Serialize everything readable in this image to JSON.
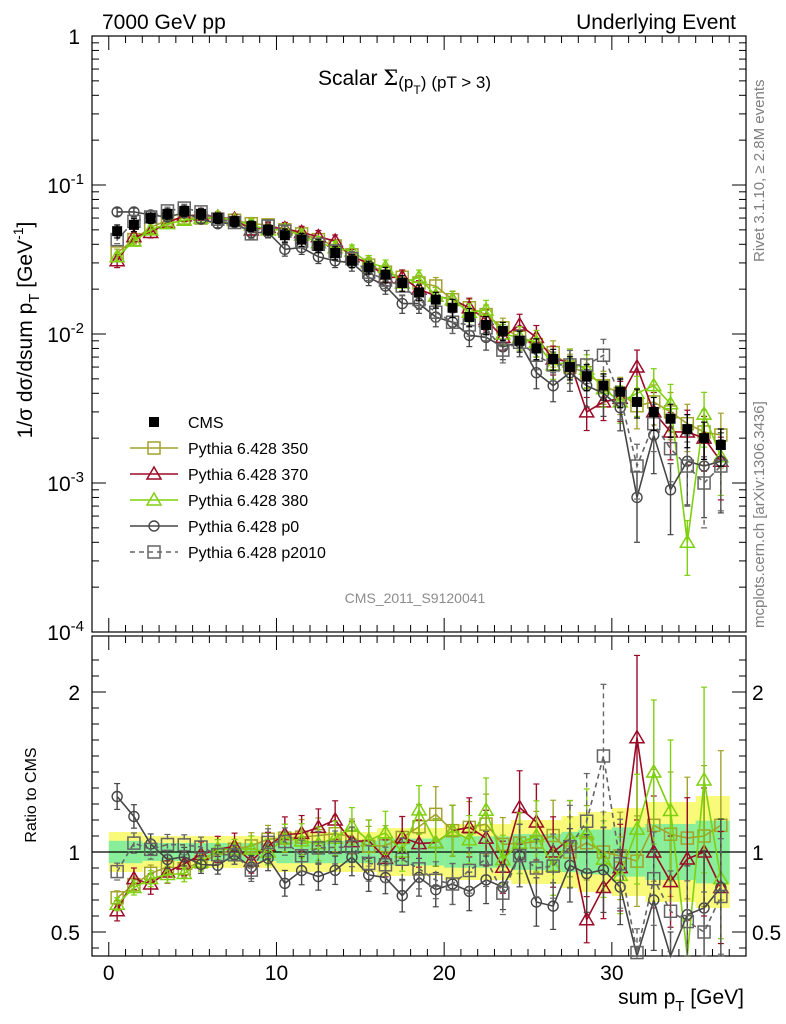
{
  "header": {
    "left": "7000 GeV pp",
    "right": "Underlying Event"
  },
  "side_labels": {
    "rivet": "Rivet 3.1.10, ≥ 2.8M events",
    "mcplots": "mcplots.cern.ch [arXiv:1306.3436]"
  },
  "analysis_id": "CMS_2011_S9120041",
  "chart_data": [
    {
      "type": "line",
      "title": "Scalar Σ(p_T) (pT > 3)",
      "title_parts": {
        "main": "Scalar ",
        "sigma": "Σ",
        "p": "(p",
        "T": "T",
        "close": ")",
        "cut": "(pT >  3)"
      },
      "ylabel": "1/σ dσ/dsum p_T [GeV⁻¹]",
      "ylabel_parts": {
        "main": "1/σ dσ/dsum p",
        "sub": "T",
        "unit": " [GeV",
        "exp": "-1",
        "close": "]"
      },
      "xlabel": "sum p_T [GeV]",
      "yscale": "log",
      "ylim": [
        0.0001,
        1
      ],
      "xlim": [
        -1,
        38
      ],
      "yticks": [
        {
          "v": 1,
          "label": "1"
        },
        {
          "v": 0.1,
          "label": "10",
          "exp": "-1"
        },
        {
          "v": 0.01,
          "label": "10",
          "exp": "-2"
        },
        {
          "v": 0.001,
          "label": "10",
          "exp": "-3"
        },
        {
          "v": 0.0001,
          "label": "10",
          "exp": "-4"
        }
      ],
      "legend": "center-left",
      "x": [
        0.5,
        1.5,
        2.5,
        3.5,
        4.5,
        5.5,
        6.5,
        7.5,
        8.5,
        9.5,
        10.5,
        11.5,
        12.5,
        13.5,
        14.5,
        15.5,
        16.5,
        17.5,
        18.5,
        19.5,
        20.5,
        21.5,
        22.5,
        23.5,
        24.5,
        25.5,
        26.5,
        27.5,
        28.5,
        29.5,
        30.5,
        31.5,
        32.5,
        33.5,
        34.5,
        35.5,
        36.5
      ],
      "series": [
        {
          "name": "CMS",
          "color": "#000000",
          "marker": "filled-square",
          "dashed": false,
          "values": [
            0.049,
            0.054,
            0.06,
            0.064,
            0.067,
            0.064,
            0.06,
            0.057,
            0.053,
            0.05,
            0.046,
            0.043,
            0.039,
            0.035,
            0.031,
            0.028,
            0.025,
            0.022,
            0.019,
            0.017,
            0.015,
            0.013,
            0.0115,
            0.0105,
            0.009,
            0.008,
            0.0068,
            0.006,
            0.0052,
            0.0045,
            0.0041,
            0.0035,
            0.003,
            0.0027,
            0.0023,
            0.002,
            0.0018
          ],
          "errors": [
            0.1,
            0.1,
            0.08,
            0.08,
            0.08,
            0.08,
            0.08,
            0.08,
            0.08,
            0.08,
            0.1,
            0.1,
            0.1,
            0.1,
            0.1,
            0.1,
            0.12,
            0.12,
            0.12,
            0.12,
            0.14,
            0.14,
            0.14,
            0.14,
            0.16,
            0.16,
            0.16,
            0.18,
            0.2,
            0.2,
            0.22,
            0.22,
            0.25,
            0.25,
            0.25,
            0.28,
            0.28
          ]
        },
        {
          "name": "Pythia 6.428 350",
          "color": "#a2a32b",
          "marker": "open-square",
          "dashed": false,
          "values": [
            0.035,
            0.043,
            0.052,
            0.058,
            0.06,
            0.06,
            0.059,
            0.058,
            0.055,
            0.054,
            0.05,
            0.047,
            0.043,
            0.039,
            0.034,
            0.029,
            0.026,
            0.024,
            0.022,
            0.021,
            0.017,
            0.015,
            0.0135,
            0.011,
            0.0095,
            0.0085,
            0.0075,
            0.006,
            0.0055,
            0.0045,
            0.004,
            0.0033,
            0.0035,
            0.003,
            0.0025,
            0.0022,
            0.0021
          ],
          "errors": [
            0.06,
            0.06,
            0.06,
            0.06,
            0.06,
            0.06,
            0.06,
            0.06,
            0.08,
            0.08,
            0.08,
            0.1,
            0.1,
            0.1,
            0.1,
            0.12,
            0.12,
            0.12,
            0.12,
            0.14,
            0.14,
            0.14,
            0.16,
            0.16,
            0.18,
            0.18,
            0.2,
            0.22,
            0.22,
            0.25,
            0.28,
            0.3,
            0.3,
            0.35,
            0.35,
            0.4,
            0.4
          ]
        },
        {
          "name": "Pythia 6.428 370",
          "color": "#9b0a27",
          "marker": "open-triangle",
          "dashed": false,
          "values": [
            0.031,
            0.045,
            0.048,
            0.056,
            0.062,
            0.063,
            0.061,
            0.059,
            0.05,
            0.052,
            0.051,
            0.048,
            0.045,
            0.042,
            0.033,
            0.03,
            0.024,
            0.024,
            0.02,
            0.018,
            0.017,
            0.015,
            0.0125,
            0.0095,
            0.0115,
            0.0095,
            0.0068,
            0.0065,
            0.003,
            0.0035,
            0.0037,
            0.006,
            0.003,
            0.0022,
            0.0022,
            0.002,
            0.0014
          ],
          "errors": [
            0.1,
            0.08,
            0.08,
            0.08,
            0.08,
            0.08,
            0.08,
            0.08,
            0.08,
            0.08,
            0.1,
            0.1,
            0.1,
            0.1,
            0.12,
            0.12,
            0.12,
            0.12,
            0.14,
            0.14,
            0.14,
            0.16,
            0.16,
            0.18,
            0.18,
            0.2,
            0.22,
            0.22,
            0.25,
            0.25,
            0.3,
            0.3,
            0.35,
            0.35,
            0.4,
            0.4,
            0.45
          ]
        },
        {
          "name": "Pythia 6.428 380",
          "color": "#7fd00f",
          "marker": "open-triangle",
          "dashed": false,
          "values": [
            0.033,
            0.042,
            0.05,
            0.055,
            0.058,
            0.06,
            0.061,
            0.058,
            0.054,
            0.05,
            0.05,
            0.046,
            0.041,
            0.038,
            0.036,
            0.03,
            0.028,
            0.022,
            0.024,
            0.018,
            0.017,
            0.014,
            0.0145,
            0.01,
            0.0095,
            0.0088,
            0.0062,
            0.0065,
            0.0058,
            0.0043,
            0.0035,
            0.004,
            0.0045,
            0.0034,
            0.0004,
            0.0029,
            0.0015
          ],
          "errors": [
            0.06,
            0.06,
            0.06,
            0.06,
            0.06,
            0.06,
            0.06,
            0.06,
            0.08,
            0.08,
            0.08,
            0.1,
            0.1,
            0.1,
            0.1,
            0.12,
            0.12,
            0.12,
            0.12,
            0.14,
            0.14,
            0.14,
            0.16,
            0.16,
            0.18,
            0.2,
            0.2,
            0.22,
            0.25,
            0.25,
            0.28,
            0.3,
            0.3,
            0.35,
            0.4,
            0.4,
            0.45
          ]
        },
        {
          "name": "Pythia 6.428 p0",
          "color": "#464646",
          "marker": "open-circle",
          "dashed": false,
          "values": [
            0.066,
            0.066,
            0.063,
            0.061,
            0.065,
            0.059,
            0.055,
            0.056,
            0.048,
            0.048,
            0.037,
            0.038,
            0.033,
            0.031,
            0.03,
            0.024,
            0.021,
            0.016,
            0.016,
            0.013,
            0.012,
            0.0098,
            0.0095,
            0.0082,
            0.0088,
            0.0055,
            0.0045,
            0.0055,
            0.0045,
            0.004,
            0.0032,
            0.0008,
            0.0021,
            0.0009,
            0.0014,
            0.0013,
            0.0014
          ],
          "errors": [
            0.06,
            0.06,
            0.06,
            0.06,
            0.06,
            0.06,
            0.06,
            0.06,
            0.08,
            0.08,
            0.1,
            0.1,
            0.1,
            0.1,
            0.12,
            0.12,
            0.12,
            0.14,
            0.14,
            0.14,
            0.16,
            0.16,
            0.18,
            0.18,
            0.2,
            0.22,
            0.22,
            0.25,
            0.28,
            0.3,
            0.3,
            0.5,
            0.45,
            0.5,
            0.5,
            0.55,
            0.55
          ]
        },
        {
          "name": "Pythia 6.428 p2010",
          "color": "#646464",
          "marker": "open-square",
          "dashed": true,
          "values": [
            0.043,
            0.057,
            0.061,
            0.067,
            0.07,
            0.066,
            0.059,
            0.056,
            0.047,
            0.053,
            0.049,
            0.042,
            0.04,
            0.036,
            0.032,
            0.026,
            0.023,
            0.021,
            0.017,
            0.014,
            0.012,
            0.0115,
            0.011,
            0.0078,
            0.0088,
            0.0072,
            0.0062,
            0.0062,
            0.0062,
            0.0072,
            0.0038,
            0.0013,
            0.0025,
            0.0017,
            0.0013,
            0.001,
            0.0013
          ],
          "errors": [
            0.06,
            0.06,
            0.06,
            0.06,
            0.06,
            0.06,
            0.06,
            0.06,
            0.08,
            0.08,
            0.08,
            0.1,
            0.1,
            0.1,
            0.12,
            0.12,
            0.12,
            0.14,
            0.14,
            0.14,
            0.16,
            0.16,
            0.18,
            0.18,
            0.2,
            0.2,
            0.22,
            0.25,
            0.25,
            0.28,
            0.3,
            0.4,
            0.35,
            0.4,
            0.45,
            0.5,
            0.5
          ]
        }
      ]
    },
    {
      "type": "line",
      "ylabel": "Ratio to CMS",
      "xlabel": "sum p_T [GeV]",
      "xlabel_parts": {
        "main": "sum p",
        "sub": "T",
        "unit": " [GeV]"
      },
      "ylim": [
        0.35,
        2.35
      ],
      "xlim": [
        -1,
        38
      ],
      "yticks": [
        {
          "v": 2,
          "label": "2"
        },
        {
          "v": 1,
          "label": "1"
        },
        {
          "v": 0.5,
          "label": "0.5"
        }
      ],
      "xticks": [
        {
          "v": 0,
          "label": "0"
        },
        {
          "v": 10,
          "label": "10"
        },
        {
          "v": 20,
          "label": "20"
        },
        {
          "v": 30,
          "label": "30"
        }
      ],
      "bands": {
        "inner_color": "#88ee99",
        "outer_color": "#f9f97a"
      }
    }
  ]
}
